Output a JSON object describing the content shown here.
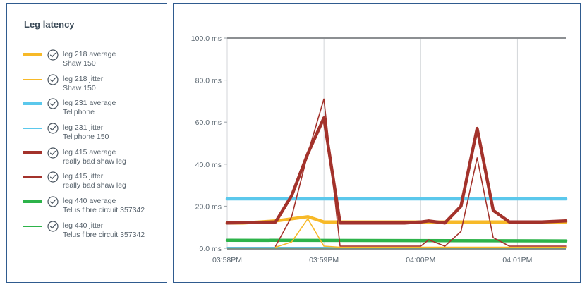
{
  "legend": {
    "title": "Leg latency",
    "items": [
      {
        "name": "leg 218 average",
        "sub": "Shaw 150",
        "color": "#f7b928",
        "style": "average"
      },
      {
        "name": "leg 218 jitter",
        "sub": "Shaw 150",
        "color": "#f7b928",
        "style": "jitter"
      },
      {
        "name": "leg 231 average",
        "sub": "Teliphone",
        "color": "#5bc8ec",
        "style": "average"
      },
      {
        "name": "leg 231 jitter",
        "sub": "Teliphone 150",
        "color": "#5bc8ec",
        "style": "jitter"
      },
      {
        "name": "leg 415 average",
        "sub": "really bad shaw leg",
        "color": "#a3322b",
        "style": "average"
      },
      {
        "name": "leg 415 jitter",
        "sub": "really bad shaw leg",
        "color": "#a3322b",
        "style": "jitter"
      },
      {
        "name": "leg 440 average",
        "sub": "Telus fibre circuit 357342",
        "color": "#2db34a",
        "style": "average"
      },
      {
        "name": "leg 440 jitter",
        "sub": "Telus fibre circuit 357342",
        "color": "#2db34a",
        "style": "jitter"
      }
    ]
  },
  "chart_data": {
    "type": "line",
    "ylim": [
      0,
      100
    ],
    "y_ticks": [
      0,
      20,
      40,
      60,
      80,
      100
    ],
    "y_tick_labels": [
      "0.0 ms",
      "20.0 ms",
      "40.0 ms",
      "60.0 ms",
      "80.0 ms",
      "100.0 ms"
    ],
    "xlim": [
      "03:58:00",
      "04:01:30"
    ],
    "x_ticks": [
      "03:58:00",
      "03:59:00",
      "04:00:00",
      "04:01:00"
    ],
    "x_tick_labels": [
      "03:58PM",
      "03:59PM",
      "04:00PM",
      "04:01PM"
    ],
    "grid": "vertical",
    "series": [
      {
        "name": "leg 218 average",
        "color": "#f7b928",
        "style": "average",
        "x": [
          "03:58:00",
          "03:58:10",
          "03:58:20",
          "03:58:30",
          "03:58:40",
          "03:58:50",
          "03:59:00",
          "03:59:10",
          "03:59:20",
          "03:59:30",
          "03:59:40",
          "03:59:50",
          "04:00:00",
          "04:00:10",
          "04:00:20",
          "04:00:30",
          "04:00:40",
          "04:00:50",
          "04:01:00",
          "04:01:10",
          "04:01:20",
          "04:01:30"
        ],
        "values": [
          12,
          12,
          12.5,
          13,
          14,
          15,
          12.5,
          12.5,
          12.5,
          12.5,
          12.5,
          12.5,
          12.5,
          12.5,
          12.5,
          12.5,
          12.5,
          12.5,
          12.5,
          12.5,
          12.5,
          12.5
        ]
      },
      {
        "name": "leg 218 jitter",
        "color": "#f7b928",
        "style": "jitter",
        "x": [
          "03:58:30",
          "03:58:40",
          "03:58:50",
          "03:59:00",
          "03:59:10",
          "03:59:20",
          "03:59:30",
          "03:59:40",
          "03:59:50",
          "04:00:00",
          "04:00:10",
          "04:00:20",
          "04:00:30",
          "04:00:40",
          "04:00:50",
          "04:01:00",
          "04:01:10",
          "04:01:20",
          "04:01:30"
        ],
        "values": [
          0.5,
          3,
          14,
          1,
          0.5,
          0.5,
          0.5,
          0.5,
          0.5,
          0.5,
          0.5,
          0.5,
          0.5,
          0.5,
          0.5,
          0.5,
          0.5,
          0.5,
          0.5
        ]
      },
      {
        "name": "leg 231 average",
        "color": "#5bc8ec",
        "style": "average",
        "x": [
          "03:58:00",
          "04:01:30"
        ],
        "values": [
          23.5,
          23.5
        ]
      },
      {
        "name": "leg 231 jitter",
        "color": "#5bc8ec",
        "style": "jitter",
        "x": [
          "03:58:00",
          "04:01:30"
        ],
        "values": [
          0.3,
          0.3
        ]
      },
      {
        "name": "leg 415 average",
        "color": "#a3322b",
        "style": "average",
        "x": [
          "03:58:00",
          "03:58:30",
          "03:58:40",
          "03:58:50",
          "03:59:00",
          "03:59:10",
          "03:59:20",
          "03:59:30",
          "03:59:40",
          "03:59:50",
          "04:00:00",
          "04:00:05",
          "04:00:15",
          "04:00:25",
          "04:00:35",
          "04:00:45",
          "04:00:55",
          "04:01:05",
          "04:01:15",
          "04:01:30"
        ],
        "values": [
          12,
          12.5,
          25,
          45,
          62,
          12,
          12,
          12,
          12,
          12,
          12.5,
          13,
          12,
          20,
          57,
          18,
          12.5,
          12.5,
          12.5,
          13
        ]
      },
      {
        "name": "leg 415 jitter",
        "color": "#a3322b",
        "style": "jitter",
        "x": [
          "03:58:30",
          "03:58:40",
          "03:58:50",
          "03:59:00",
          "03:59:10",
          "03:59:20",
          "03:59:30",
          "03:59:40",
          "03:59:50",
          "04:00:00",
          "04:00:05",
          "04:00:15",
          "04:00:25",
          "04:00:35",
          "04:00:45",
          "04:00:55",
          "04:01:05",
          "04:01:15",
          "04:01:30"
        ],
        "values": [
          1,
          15,
          45,
          71,
          1,
          1,
          1,
          1,
          1,
          1,
          4,
          1,
          8,
          43,
          5,
          1,
          1,
          1,
          1
        ]
      },
      {
        "name": "leg 440 average",
        "color": "#2db34a",
        "style": "average",
        "x": [
          "03:58:00",
          "04:01:30"
        ],
        "values": [
          3.8,
          3.5
        ]
      },
      {
        "name": "leg 440 jitter",
        "color": "#2db34a",
        "style": "jitter",
        "x": [
          "03:58:00",
          "04:01:30"
        ],
        "values": [
          0.2,
          0.2
        ]
      }
    ]
  }
}
